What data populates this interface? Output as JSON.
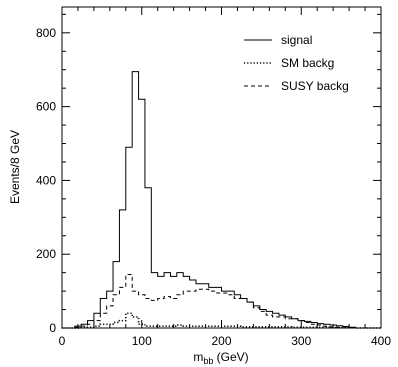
{
  "chart_data": {
    "type": "histogram",
    "xlabel_main": "m",
    "xlabel_sub": "bb",
    "xlabel_unit": " (GeV)",
    "ylabel": "Events/8 GeV",
    "xlim": [
      0,
      400
    ],
    "ylim": [
      0,
      870
    ],
    "bin_width": 8,
    "x_start": 0,
    "xticks": [
      0,
      100,
      200,
      300,
      400
    ],
    "yticks": [
      0,
      200,
      400,
      600,
      800
    ],
    "grid": false,
    "legend_position": "top-right",
    "series": [
      {
        "name": "signal",
        "style": "solid",
        "values": [
          0,
          0,
          5,
          10,
          20,
          40,
          80,
          100,
          180,
          320,
          490,
          695,
          620,
          380,
          150,
          140,
          150,
          140,
          150,
          140,
          130,
          120,
          120,
          110,
          110,
          100,
          100,
          90,
          80,
          70,
          60,
          50,
          45,
          40,
          35,
          30,
          25,
          20,
          18,
          15,
          12,
          10,
          8,
          6,
          4,
          2,
          0,
          0,
          0,
          0
        ]
      },
      {
        "name": "SM backg",
        "style": "dotted",
        "values": [
          0,
          0,
          0,
          1,
          2,
          5,
          10,
          10,
          15,
          20,
          40,
          30,
          10,
          5,
          5,
          5,
          5,
          5,
          8,
          5,
          5,
          5,
          5,
          5,
          5,
          5,
          5,
          5,
          3,
          3,
          3,
          3,
          3,
          3,
          3,
          3,
          2,
          2,
          2,
          2,
          2,
          2,
          1,
          1,
          1,
          1,
          0,
          0,
          0,
          0
        ]
      },
      {
        "name": "SUSY backg",
        "style": "dashed",
        "values": [
          0,
          0,
          2,
          5,
          10,
          20,
          40,
          60,
          90,
          110,
          145,
          100,
          90,
          80,
          75,
          80,
          85,
          80,
          90,
          100,
          100,
          105,
          105,
          100,
          95,
          95,
          90,
          80,
          80,
          70,
          55,
          45,
          35,
          30,
          30,
          25,
          25,
          20,
          15,
          10,
          8,
          5,
          3,
          2,
          1,
          0,
          0,
          0,
          0,
          0
        ]
      }
    ]
  }
}
